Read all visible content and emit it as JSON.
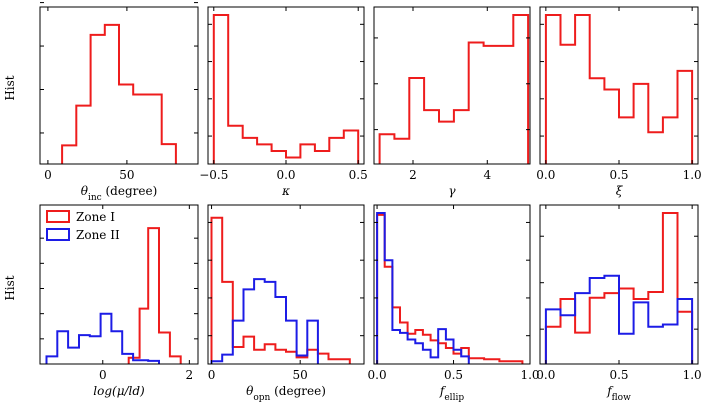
{
  "figure": {
    "ylabel_text": "Hist"
  },
  "colors": {
    "zone1": "#ee1c1c",
    "zone2": "#1c1ce6",
    "axis": "#000000"
  },
  "chart_data": [
    {
      "type": "histogram",
      "xlabel": "θ_inc (degree)",
      "xlabel_main": "θ",
      "xlabel_sub": "inc",
      "xlabel_suffix": " (degree)",
      "xlim": [
        -5,
        95
      ],
      "ymax": 12,
      "xticks": [
        {
          "v": 0,
          "label": "0"
        },
        {
          "v": 50,
          "label": "50"
        }
      ],
      "yticks": [
        2.5,
        6,
        9.5,
        13
      ],
      "series": [
        {
          "name": "Zone I",
          "color": "#ee1c1c",
          "edges": [
            9,
            18,
            27,
            36,
            45,
            54,
            63,
            72,
            81
          ],
          "counts": [
            1.5,
            4.7,
            10.4,
            11.2,
            6.4,
            5.6,
            5.6,
            1.6
          ]
        }
      ]
    },
    {
      "type": "histogram",
      "xlabel": "κ",
      "xlabel_main": "κ",
      "xlabel_sub": "",
      "xlabel_suffix": "",
      "xlim": [
        -0.54,
        0.54
      ],
      "ymax": 16,
      "xticks": [
        {
          "v": -0.5,
          "label": "−0.5"
        },
        {
          "v": 0,
          "label": "0.0"
        },
        {
          "v": 0.5,
          "label": "0.5"
        }
      ],
      "yticks": [
        3,
        7,
        11,
        15
      ],
      "series": [
        {
          "name": "Zone I",
          "color": "#ee1c1c",
          "edges": [
            -0.5,
            -0.4,
            -0.3,
            -0.2,
            -0.1,
            0.0,
            0.1,
            0.2,
            0.3,
            0.4,
            0.5
          ],
          "counts": [
            16,
            4.1,
            2.8,
            2.1,
            1.4,
            0.7,
            2.1,
            1.4,
            2.8,
            3.6
          ]
        }
      ]
    },
    {
      "type": "histogram",
      "xlabel": "γ",
      "xlabel_main": "γ",
      "xlabel_sub": "",
      "xlabel_suffix": "",
      "xlim": [
        0.95,
        5.15
      ],
      "ymax": 13,
      "xticks": [
        {
          "v": 2,
          "label": "2"
        },
        {
          "v": 4,
          "label": "4"
        }
      ],
      "yticks": [
        3,
        7,
        11
      ],
      "series": [
        {
          "name": "Zone I",
          "color": "#ee1c1c",
          "edges": [
            1.1,
            1.5,
            1.9,
            2.3,
            2.7,
            3.1,
            3.5,
            3.9,
            4.3,
            4.7,
            5.1
          ],
          "counts": [
            2.6,
            2.2,
            7.5,
            4.7,
            3.7,
            4.7,
            10.6,
            10.3,
            10.3,
            13
          ]
        }
      ]
    },
    {
      "type": "histogram",
      "xlabel": "ξ",
      "xlabel_main": "ξ",
      "xlabel_sub": "",
      "xlabel_suffix": "",
      "xlim": [
        -0.04,
        1.04
      ],
      "ymax": 16,
      "xticks": [
        {
          "v": 0,
          "label": "0.0"
        },
        {
          "v": 0.5,
          "label": "0.5"
        },
        {
          "v": 1,
          "label": "1.0"
        }
      ],
      "yticks": [
        3,
        7,
        11,
        15
      ],
      "series": [
        {
          "name": "Zone I",
          "color": "#ee1c1c",
          "edges": [
            0.0,
            0.1,
            0.2,
            0.3,
            0.4,
            0.5,
            0.6,
            0.7,
            0.8,
            0.9,
            1.0
          ],
          "counts": [
            16,
            12.8,
            16,
            9.2,
            8.0,
            5.0,
            8.6,
            3.4,
            5.0,
            10.0
          ]
        }
      ]
    },
    {
      "type": "histogram",
      "xlabel": "log(μ/ld)",
      "xlabel_main": "log(μ/ld)",
      "xlabel_sub": "",
      "xlabel_suffix": "",
      "xlim": [
        -1.45,
        2.2
      ],
      "ymax": 12,
      "xticks": [
        {
          "v": 0,
          "label": "0"
        },
        {
          "v": 2,
          "label": "2"
        }
      ],
      "yticks": [
        2,
        4,
        6,
        8,
        10
      ],
      "legend": [
        {
          "name": "Zone I",
          "color": "#ee1c1c"
        },
        {
          "name": "Zone II",
          "color": "#1c1ce6"
        }
      ],
      "series": [
        {
          "name": "Zone I",
          "color": "#ee1c1c",
          "edges": [
            0.6,
            0.85,
            1.05,
            1.3,
            1.55,
            1.8
          ],
          "counts": [
            0.5,
            4.4,
            10.8,
            2.5,
            0.6
          ]
        },
        {
          "name": "Zone II",
          "color": "#1c1ce6",
          "edges": [
            -1.3,
            -1.05,
            -0.8,
            -0.55,
            -0.3,
            -0.05,
            0.2,
            0.45,
            0.7,
            1.05,
            1.3
          ],
          "counts": [
            0.6,
            2.6,
            1.3,
            2.3,
            2.2,
            4.0,
            2.6,
            0.8,
            0.3,
            0.25
          ]
        }
      ]
    },
    {
      "type": "histogram",
      "xlabel": "θ_opn (degree)",
      "xlabel_main": "θ",
      "xlabel_sub": "opn",
      "xlabel_suffix": " (degree)",
      "xlim": [
        -2,
        86
      ],
      "ymax": 16,
      "xticks": [
        {
          "v": 0,
          "label": "0"
        },
        {
          "v": 50,
          "label": "50"
        }
      ],
      "yticks": [
        3,
        7,
        11,
        15
      ],
      "series": [
        {
          "name": "Zone I",
          "color": "#ee1c1c",
          "edges": [
            0,
            6,
            12,
            18,
            24,
            30,
            36,
            42,
            48,
            54,
            60,
            66,
            72,
            78
          ],
          "counts": [
            15.5,
            8.7,
            1.8,
            2.9,
            1.5,
            2.1,
            1.5,
            1.3,
            0.7,
            1.5,
            1.1,
            0.5,
            0.5
          ]
        },
        {
          "name": "Zone II",
          "color": "#1c1ce6",
          "edges": [
            0,
            6,
            12,
            18,
            24,
            30,
            36,
            42,
            48,
            54,
            60
          ],
          "counts": [
            0.3,
            1.0,
            4.6,
            7.9,
            9.0,
            8.7,
            7.1,
            4.6,
            0.9,
            4.6
          ]
        }
      ]
    },
    {
      "type": "histogram",
      "xlabel": "f_ellip",
      "xlabel_main": "f",
      "xlabel_sub": "ellip",
      "xlabel_suffix": "",
      "xlim": [
        -0.02,
        1.0
      ],
      "ymax": 16,
      "xticks": [
        {
          "v": 0,
          "label": "0.0"
        },
        {
          "v": 0.5,
          "label": "0.5"
        },
        {
          "v": 1,
          "label": "1.0"
        }
      ],
      "yticks": [
        3,
        7,
        11,
        15
      ],
      "series": [
        {
          "name": "Zone I",
          "color": "#ee1c1c",
          "edges": [
            0.0,
            0.05,
            0.1,
            0.15,
            0.2,
            0.25,
            0.3,
            0.35,
            0.4,
            0.45,
            0.5,
            0.55,
            0.6,
            0.7,
            0.8,
            0.9,
            0.95
          ],
          "counts": [
            15.8,
            10.3,
            6.0,
            4.4,
            3.2,
            3.6,
            3.1,
            2.5,
            2.2,
            1.7,
            1.1,
            1.7,
            0.6,
            0.5,
            0.3,
            0.3
          ]
        },
        {
          "name": "Zone II",
          "color": "#1c1ce6",
          "edges": [
            0.0,
            0.05,
            0.1,
            0.15,
            0.2,
            0.25,
            0.3,
            0.35,
            0.4,
            0.45,
            0.5,
            0.55,
            0.6
          ],
          "counts": [
            16,
            11.0,
            3.6,
            3.3,
            2.6,
            2.2,
            1.5,
            0.7,
            3.7,
            2.6,
            1.5,
            0.8
          ]
        }
      ]
    },
    {
      "type": "histogram",
      "xlabel": "f_flow",
      "xlabel_main": "f",
      "xlabel_sub": "flow",
      "xlabel_suffix": "",
      "xlim": [
        -0.04,
        1.04
      ],
      "ymax": 13,
      "xticks": [
        {
          "v": 0,
          "label": "0.0"
        },
        {
          "v": 0.5,
          "label": "0.5"
        },
        {
          "v": 1,
          "label": "1.0"
        }
      ],
      "yticks": [
        3,
        7,
        11
      ],
      "series": [
        {
          "name": "Zone I",
          "color": "#ee1c1c",
          "edges": [
            0.0,
            0.1,
            0.2,
            0.3,
            0.4,
            0.5,
            0.6,
            0.7,
            0.8,
            0.9,
            1.0
          ],
          "counts": [
            3.2,
            5.6,
            2.7,
            5.7,
            6.1,
            6.5,
            5.6,
            6.2,
            13.0,
            4.5
          ]
        },
        {
          "name": "Zone II",
          "color": "#1c1ce6",
          "edges": [
            0.0,
            0.1,
            0.2,
            0.3,
            0.4,
            0.5,
            0.6,
            0.7,
            0.8,
            0.9,
            1.0
          ],
          "counts": [
            4.7,
            4.2,
            6.1,
            7.4,
            7.6,
            2.6,
            5.3,
            3.2,
            3.4,
            5.6
          ]
        }
      ]
    }
  ]
}
